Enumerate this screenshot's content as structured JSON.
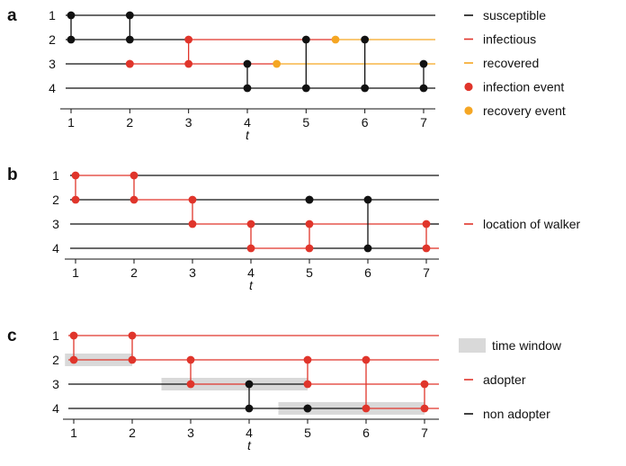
{
  "colors": {
    "black": "#111111",
    "red": "#e0352b",
    "orange": "#f5a623",
    "window": "#d9d9d9"
  },
  "panels": [
    {
      "letter": "a",
      "rows": [
        "1",
        "2",
        "3",
        "4"
      ],
      "ticks": [
        "1",
        "2",
        "3",
        "4",
        "5",
        "6",
        "7"
      ],
      "axis_title": "t",
      "lines": [
        {
          "row": 1,
          "segments": [
            {
              "from": 0.95,
              "to": 7.2,
              "state": "susceptible"
            }
          ]
        },
        {
          "row": 2,
          "segments": [
            {
              "from": 0.95,
              "to": 3,
              "state": "susceptible"
            },
            {
              "from": 3,
              "to": 5.5,
              "state": "infectious"
            },
            {
              "from": 5.5,
              "to": 7.2,
              "state": "recovered"
            }
          ]
        },
        {
          "row": 3,
          "segments": [
            {
              "from": 0.95,
              "to": 2,
              "state": "susceptible"
            },
            {
              "from": 2,
              "to": 4.5,
              "state": "infectious"
            },
            {
              "from": 4.5,
              "to": 7.2,
              "state": "recovered"
            }
          ]
        },
        {
          "row": 4,
          "segments": [
            {
              "from": 0.95,
              "to": 7.2,
              "state": "susceptible"
            }
          ]
        }
      ],
      "contacts": [
        {
          "t": 1,
          "a": 1,
          "b": 2,
          "type": "black"
        },
        {
          "t": 2,
          "a": 1,
          "b": 2,
          "type": "black"
        },
        {
          "t": 2,
          "a": 3,
          "b": 3,
          "type": "infection"
        },
        {
          "t": 3,
          "a": 2,
          "b": 3,
          "type": "infection"
        },
        {
          "t": 4,
          "a": 3,
          "b": 4,
          "type": "black"
        },
        {
          "t": 5,
          "a": 2,
          "b": 4,
          "type": "black"
        },
        {
          "t": 6,
          "a": 2,
          "b": 4,
          "type": "black"
        },
        {
          "t": 7,
          "a": 3,
          "b": 4,
          "type": "black"
        }
      ],
      "recovery_events": [
        {
          "t": 4.5,
          "row": 3
        },
        {
          "t": 5.5,
          "row": 2
        }
      ],
      "windows": [],
      "legend": [
        {
          "kind": "line",
          "color": "black",
          "label": "susceptible"
        },
        {
          "kind": "line",
          "color": "red",
          "label": "infectious"
        },
        {
          "kind": "line",
          "color": "orange",
          "label": "recovered"
        },
        {
          "kind": "dot",
          "color": "red",
          "label": "infection event"
        },
        {
          "kind": "dot",
          "color": "orange",
          "label": "recovery event"
        }
      ]
    },
    {
      "letter": "b",
      "rows": [
        "1",
        "2",
        "3",
        "4"
      ],
      "ticks": [
        "1",
        "2",
        "3",
        "4",
        "5",
        "6",
        "7"
      ],
      "axis_title": "t",
      "lines": [
        {
          "row": 1,
          "segments": [
            {
              "from": 0.95,
              "to": 1,
              "state": "black"
            },
            {
              "from": 1,
              "to": 2,
              "state": "walker"
            },
            {
              "from": 2,
              "to": 7.2,
              "state": "black"
            }
          ]
        },
        {
          "row": 2,
          "segments": [
            {
              "from": 0.95,
              "to": 2,
              "state": "black"
            },
            {
              "from": 2,
              "to": 3,
              "state": "walker"
            },
            {
              "from": 3,
              "to": 7.2,
              "state": "black"
            }
          ]
        },
        {
          "row": 3,
          "segments": [
            {
              "from": 0.95,
              "to": 3,
              "state": "black"
            },
            {
              "from": 3,
              "to": 4,
              "state": "walker"
            },
            {
              "from": 4,
              "to": 5,
              "state": "black"
            },
            {
              "from": 5,
              "to": 7,
              "state": "walker"
            },
            {
              "from": 7,
              "to": 7.2,
              "state": "black"
            }
          ]
        },
        {
          "row": 4,
          "segments": [
            {
              "from": 0.95,
              "to": 4,
              "state": "black"
            },
            {
              "from": 4,
              "to": 5,
              "state": "walker"
            },
            {
              "from": 5,
              "to": 7,
              "state": "black"
            },
            {
              "from": 7,
              "to": 7.2,
              "state": "walker"
            }
          ]
        }
      ],
      "contacts": [
        {
          "t": 1,
          "a": 1,
          "b": 2,
          "type": "red"
        },
        {
          "t": 2,
          "a": 1,
          "b": 2,
          "type": "red"
        },
        {
          "t": 3,
          "a": 2,
          "b": 3,
          "type": "red"
        },
        {
          "t": 4,
          "a": 3,
          "b": 4,
          "type": "red"
        },
        {
          "t": 5,
          "a": 2,
          "b": 2,
          "type": "black"
        },
        {
          "t": 5,
          "a": 3,
          "b": 4,
          "type": "red"
        },
        {
          "t": 6,
          "a": 2,
          "b": 4,
          "type": "black"
        },
        {
          "t": 7,
          "a": 3,
          "b": 4,
          "type": "red"
        }
      ],
      "recovery_events": [],
      "windows": [],
      "legend": [
        {
          "kind": "line",
          "color": "red",
          "label": "location of walker"
        }
      ]
    },
    {
      "letter": "c",
      "rows": [
        "1",
        "2",
        "3",
        "4"
      ],
      "ticks": [
        "1",
        "2",
        "3",
        "4",
        "5",
        "6",
        "7"
      ],
      "axis_title": "t",
      "lines": [
        {
          "row": 1,
          "segments": [
            {
              "from": 0.95,
              "to": 7.2,
              "state": "adopter"
            }
          ]
        },
        {
          "row": 2,
          "segments": [
            {
              "from": 0.95,
              "to": 7.2,
              "state": "adopter"
            }
          ]
        },
        {
          "row": 3,
          "segments": [
            {
              "from": 0.95,
              "to": 3,
              "state": "non-adopter"
            },
            {
              "from": 3,
              "to": 4,
              "state": "adopter"
            },
            {
              "from": 4,
              "to": 5,
              "state": "non-adopter"
            },
            {
              "from": 5,
              "to": 7.2,
              "state": "adopter"
            }
          ]
        },
        {
          "row": 4,
          "segments": [
            {
              "from": 0.95,
              "to": 6,
              "state": "non-adopter"
            },
            {
              "from": 6,
              "to": 7.2,
              "state": "adopter"
            }
          ]
        }
      ],
      "contacts": [
        {
          "t": 1,
          "a": 1,
          "b": 2,
          "type": "red"
        },
        {
          "t": 2,
          "a": 1,
          "b": 2,
          "type": "red"
        },
        {
          "t": 3,
          "a": 2,
          "b": 3,
          "type": "red"
        },
        {
          "t": 4,
          "a": 3,
          "b": 4,
          "type": "black"
        },
        {
          "t": 5,
          "a": 2,
          "b": 3,
          "type": "red"
        },
        {
          "t": 5,
          "a": 4,
          "b": 4,
          "type": "black"
        },
        {
          "t": 6,
          "a": 2,
          "b": 4,
          "type": "red"
        },
        {
          "t": 7,
          "a": 3,
          "b": 4,
          "type": "red"
        }
      ],
      "recovery_events": [],
      "windows": [
        {
          "row": 2,
          "from": 0.85,
          "to": 2.0
        },
        {
          "row": 3,
          "from": 2.5,
          "to": 5.0
        },
        {
          "row": 4,
          "from": 4.5,
          "to": 7.0
        }
      ],
      "legend": [
        {
          "kind": "box",
          "color": "window",
          "label": "time window"
        },
        {
          "kind": "line",
          "color": "red",
          "label": "adopter"
        },
        {
          "kind": "line",
          "color": "black",
          "label": "non adopter"
        }
      ]
    }
  ]
}
